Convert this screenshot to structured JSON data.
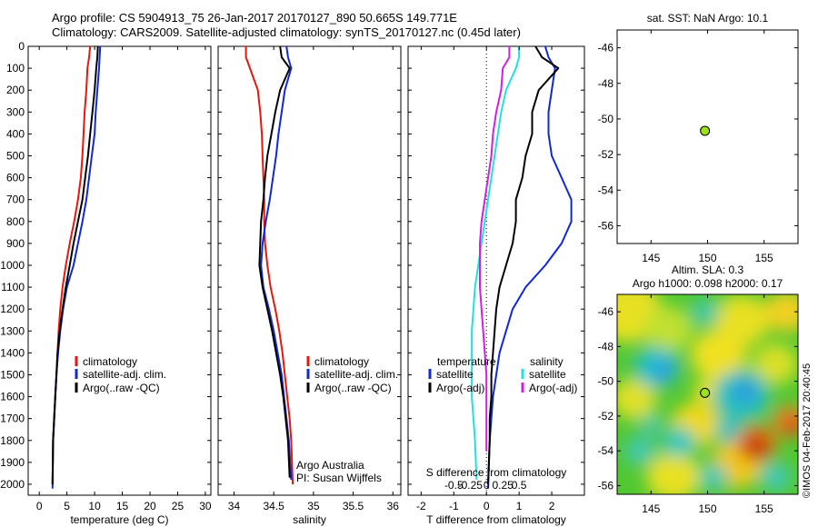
{
  "header": {
    "line1": "Argo profile: CS 5904913_75 26-Jan-2017 20170127_890 50.665S 149.771E",
    "line2": "Climatology: CARS2009. Satellite-adjusted climatology: synTS_20170127.nc (0.45d later)"
  },
  "colors": {
    "climatology": "#e8160c",
    "satellite": "#1028d8",
    "argo": "#000000",
    "cyan": "#22e0e0",
    "magenta": "#d020e0",
    "marker": "#9be21a"
  },
  "chart_data": [
    {
      "type": "line",
      "id": "temperature",
      "xlabel": "temperature (deg C)",
      "ylabel": "",
      "xlim": [
        -2,
        31
      ],
      "xticks": [
        0,
        5,
        10,
        15,
        20,
        25,
        30
      ],
      "ylim": [
        0,
        2050
      ],
      "yticks": [
        0,
        100,
        200,
        300,
        400,
        500,
        600,
        700,
        800,
        900,
        1000,
        1100,
        1200,
        1300,
        1400,
        1500,
        1600,
        1700,
        1800,
        1900,
        2000
      ],
      "reversed_y": true,
      "legend": [
        "climatology",
        "satellite-adj. clim.",
        "Argo(..raw -QC)"
      ],
      "series": [
        {
          "name": "climatology",
          "color": "climatology",
          "x": [
            9.2,
            9.0,
            8.7,
            8.5,
            8.2,
            8.0,
            7.8,
            7.5,
            7.0,
            6.3,
            5.5,
            4.8,
            4.2,
            3.8,
            3.5,
            3.3,
            3.1,
            2.9,
            2.7,
            2.5,
            2.4
          ],
          "y": [
            0,
            50,
            100,
            200,
            300,
            400,
            500,
            600,
            700,
            800,
            900,
            1000,
            1100,
            1200,
            1300,
            1400,
            1500,
            1600,
            1700,
            1800,
            2000
          ]
        },
        {
          "name": "satellite-adj. clim.",
          "color": "satellite",
          "x": [
            11.0,
            10.9,
            10.8,
            10.5,
            10.2,
            10.0,
            9.5,
            9.0,
            8.5,
            7.8,
            7.0,
            6.2,
            5.0,
            4.3,
            3.8,
            3.4,
            3.1,
            2.9,
            2.7,
            2.5,
            2.4
          ],
          "y": [
            0,
            50,
            100,
            200,
            300,
            400,
            500,
            600,
            700,
            800,
            900,
            1000,
            1100,
            1200,
            1300,
            1400,
            1500,
            1600,
            1700,
            1800,
            2020
          ]
        },
        {
          "name": "Argo(..raw -QC)",
          "color": "argo",
          "x": [
            10.6,
            10.5,
            10.3,
            10.0,
            9.6,
            9.2,
            8.8,
            8.3,
            7.8,
            7.0,
            6.2,
            5.5,
            4.8,
            4.2,
            3.7,
            3.3,
            3.1,
            2.9,
            2.7,
            2.5,
            2.4
          ],
          "y": [
            0,
            50,
            100,
            200,
            300,
            400,
            500,
            600,
            700,
            800,
            900,
            1000,
            1100,
            1200,
            1300,
            1400,
            1500,
            1600,
            1700,
            1800,
            2000
          ]
        }
      ]
    },
    {
      "type": "line",
      "id": "salinity",
      "xlabel": "salinity",
      "ylabel": "",
      "xlim": [
        33.8,
        36.1
      ],
      "xticks": [
        34,
        34.5,
        35,
        35.5,
        36
      ],
      "ylim": [
        0,
        2050
      ],
      "reversed_y": true,
      "legend": [
        "climatology",
        "satellite-adj. clim.",
        "Argo(..raw -QC)"
      ],
      "annotation": [
        "Argo Australia",
        "PI: Susan Wijffels"
      ],
      "series": [
        {
          "name": "climatology",
          "color": "climatology",
          "x": [
            34.15,
            34.15,
            34.2,
            34.3,
            34.33,
            34.35,
            34.36,
            34.37,
            34.38,
            34.38,
            34.39,
            34.42,
            34.46,
            34.52,
            34.57,
            34.61,
            34.64,
            34.67,
            34.7,
            34.72,
            34.74
          ],
          "y": [
            0,
            50,
            100,
            200,
            300,
            400,
            500,
            600,
            700,
            800,
            900,
            1000,
            1100,
            1200,
            1300,
            1400,
            1500,
            1600,
            1700,
            1800,
            2000
          ]
        },
        {
          "name": "satellite-adj. clim.",
          "color": "satellite",
          "x": [
            34.66,
            34.68,
            34.72,
            34.64,
            34.6,
            34.56,
            34.53,
            34.49,
            34.45,
            34.4,
            34.36,
            34.34,
            34.37,
            34.44,
            34.5,
            34.55,
            34.6,
            34.63,
            34.66,
            34.69,
            34.72
          ],
          "y": [
            0,
            50,
            100,
            200,
            300,
            400,
            500,
            600,
            700,
            800,
            900,
            1000,
            1100,
            1200,
            1300,
            1400,
            1500,
            1600,
            1700,
            1800,
            1980
          ]
        },
        {
          "name": "Argo(..raw -QC)",
          "color": "argo",
          "x": [
            34.58,
            34.6,
            34.7,
            34.58,
            34.52,
            34.47,
            34.42,
            34.39,
            34.37,
            34.34,
            34.33,
            34.32,
            34.36,
            34.42,
            34.48,
            34.53,
            34.58,
            34.62,
            34.65,
            34.68,
            34.7
          ],
          "y": [
            0,
            50,
            100,
            200,
            300,
            400,
            500,
            600,
            700,
            800,
            900,
            1000,
            1100,
            1200,
            1300,
            1400,
            1500,
            1600,
            1700,
            1800,
            1970
          ]
        }
      ]
    },
    {
      "type": "line",
      "id": "difference",
      "xlabel": "T difference from climatology",
      "xlabel2": "S difference from climatology",
      "xlim": [
        -2.4,
        3.0
      ],
      "xticks": [
        -2,
        -1,
        0,
        1,
        2
      ],
      "xticks2_labels": [
        "-0.5",
        "-0.25",
        "0",
        "0.25",
        "0.5"
      ],
      "xticks2_pos": [
        -1.0,
        -0.5,
        0,
        0.5,
        1.0
      ],
      "ylim": [
        0,
        2050
      ],
      "reversed_y": true,
      "legend_t_title": "temperature",
      "legend_s_title": "salinity",
      "legend": [
        "satellite",
        "Argo(-adj)",
        "satellite",
        "Argo(-adj)"
      ],
      "series": [
        {
          "name": "T satellite",
          "color": "satellite",
          "x": [
            1.8,
            1.9,
            2.1,
            2.0,
            1.9,
            1.9,
            2.0,
            2.3,
            2.6,
            2.6,
            2.3,
            1.8,
            1.2,
            0.8,
            0.6,
            0.4,
            0.3,
            0.2,
            0.15,
            0.1,
            0.05
          ],
          "y": [
            0,
            50,
            100,
            200,
            300,
            400,
            500,
            600,
            700,
            800,
            900,
            1000,
            1100,
            1200,
            1300,
            1400,
            1500,
            1600,
            1700,
            1800,
            2020
          ]
        },
        {
          "name": "T Argo(-adj)",
          "color": "argo",
          "x": [
            1.5,
            1.7,
            2.2,
            1.6,
            1.4,
            1.4,
            1.2,
            1.1,
            0.9,
            0.9,
            0.8,
            0.6,
            0.4,
            0.3,
            0.25,
            0.2,
            0.15,
            0.15,
            0.1,
            0.1,
            0.05
          ],
          "y": [
            0,
            50,
            100,
            200,
            300,
            400,
            500,
            600,
            700,
            800,
            900,
            1000,
            1100,
            1200,
            1300,
            1400,
            1500,
            1600,
            1700,
            1800,
            2000
          ]
        },
        {
          "name": "S satellite",
          "color": "cyan",
          "x": [
            1.0,
            1.0,
            0.9,
            0.6,
            0.45,
            0.35,
            0.25,
            0.15,
            0.05,
            -0.05,
            -0.15,
            -0.25,
            -0.35,
            -0.4,
            -0.45,
            -0.45,
            -0.45,
            -0.45,
            -0.4,
            -0.35,
            -0.3
          ],
          "y": [
            0,
            50,
            100,
            200,
            300,
            400,
            500,
            600,
            700,
            800,
            900,
            1000,
            1100,
            1200,
            1300,
            1400,
            1500,
            1600,
            1700,
            1800,
            1980
          ]
        },
        {
          "name": "S Argo(-adj)",
          "color": "magenta",
          "x": [
            0.7,
            0.7,
            0.5,
            0.45,
            0.3,
            0.2,
            0.15,
            0.05,
            -0.05,
            -0.15,
            -0.2,
            -0.2,
            -0.2,
            -0.15,
            -0.1,
            -0.05,
            0.0,
            0.0,
            0.0,
            0.0,
            0.0
          ],
          "y": [
            0,
            50,
            100,
            200,
            300,
            400,
            500,
            600,
            700,
            800,
            900,
            1000,
            1100,
            1200,
            1300,
            1400,
            1500,
            1600,
            1700,
            1800,
            1850
          ]
        }
      ]
    },
    {
      "type": "scatter",
      "id": "sst-map",
      "title": "sat. SST: NaN Argo: 10.1",
      "xlim": [
        142,
        158
      ],
      "xticks": [
        145,
        150,
        155
      ],
      "ylim": [
        -57,
        -45
      ],
      "yticks": [
        -46,
        -48,
        -50,
        -52,
        -54,
        -56
      ],
      "points": [
        {
          "x": 149.771,
          "y": -50.665
        }
      ]
    },
    {
      "type": "heatmap",
      "id": "sla-map",
      "title": "Altim. SLA: 0.3",
      "subtitle": "Argo h1000: 0.098 h2000: 0.17",
      "xlim": [
        142,
        158
      ],
      "xticks": [
        145,
        150,
        155
      ],
      "ylim": [
        -56.5,
        -45
      ],
      "yticks": [
        -46,
        -48,
        -50,
        -52,
        -54,
        -56
      ],
      "points": [
        {
          "x": 149.771,
          "y": -50.665
        }
      ]
    }
  ],
  "watermark": "©IMOS 04-Feb-2017 20:40:45"
}
